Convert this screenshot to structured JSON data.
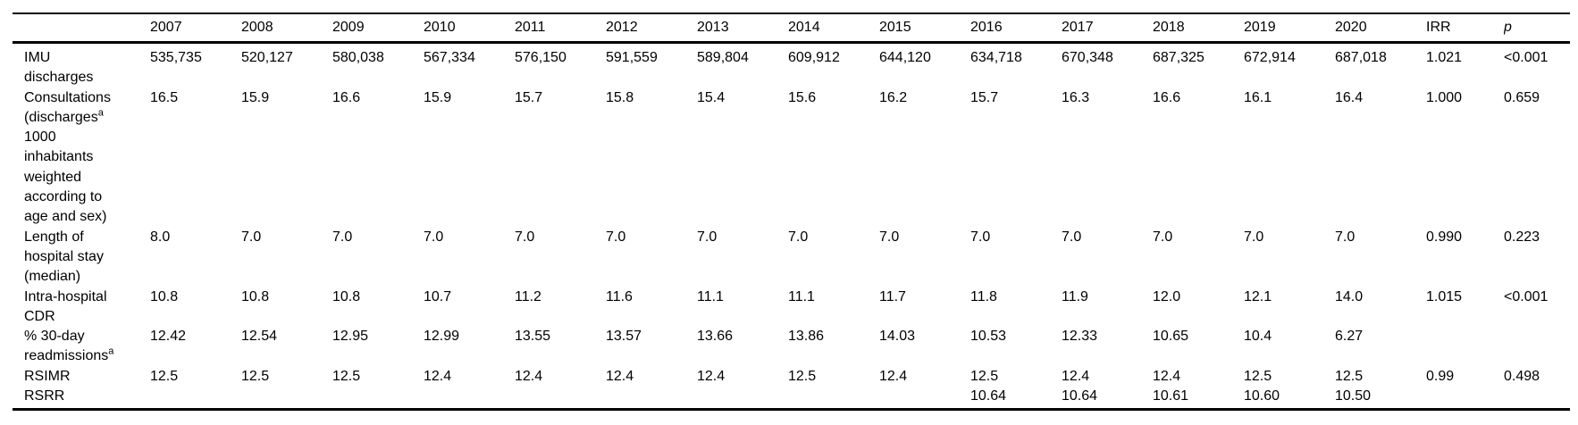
{
  "page": {
    "background_color": "#ffffff",
    "text_color": "#000000"
  },
  "table": {
    "columns": [
      "",
      "2007",
      "2008",
      "2009",
      "2010",
      "2011",
      "2012",
      "2013",
      "2014",
      "2015",
      "2016",
      "2017",
      "2018",
      "2019",
      "2020",
      "IRR",
      "p"
    ],
    "italic_header": "p",
    "rows": [
      {
        "label_lines": [
          "IMU",
          "discharges"
        ],
        "values": [
          "535,735",
          "520,127",
          "580,038",
          "567,334",
          "576,150",
          "591,559",
          "589,804",
          "609,912",
          "644,120",
          "634,718",
          "670,348",
          "687,325",
          "672,914",
          "687,018"
        ],
        "irr": "1.021",
        "p": "<0.001"
      },
      {
        "label_lines": [
          "Consultations",
          "(discharges^a",
          "1000",
          "inhabitants",
          "weighted",
          "according to",
          "age and sex)"
        ],
        "values": [
          "16.5",
          "15.9",
          "16.6",
          "15.9",
          "15.7",
          "15.8",
          "15.4",
          "15.6",
          "16.2",
          "15.7",
          "16.3",
          "16.6",
          "16.1",
          "16.4"
        ],
        "irr": "1.000",
        "p": "0.659"
      },
      {
        "label_lines": [
          "Length of",
          "hospital stay",
          "(median)"
        ],
        "values": [
          "8.0",
          "7.0",
          "7.0",
          "7.0",
          "7.0",
          "7.0",
          "7.0",
          "7.0",
          "7.0",
          "7.0",
          "7.0",
          "7.0",
          "7.0",
          "7.0"
        ],
        "irr": "0.990",
        "p": "0.223"
      },
      {
        "label_lines": [
          "Intra-hospital",
          "CDR"
        ],
        "values": [
          "10.8",
          "10.8",
          "10.8",
          "10.7",
          "11.2",
          "11.6",
          "11.1",
          "11.1",
          "11.7",
          "11.8",
          "11.9",
          "12.0",
          "12.1",
          "14.0"
        ],
        "irr": "1.015",
        "p": "<0.001"
      },
      {
        "label_lines": [
          "% 30-day",
          "readmissions^a"
        ],
        "values": [
          "12.42",
          "12.54",
          "12.95",
          "12.99",
          "13.55",
          "13.57",
          "13.66",
          "13.86",
          "14.03",
          "10.53",
          "12.33",
          "10.65",
          "10.4",
          "6.27"
        ],
        "irr": "",
        "p": ""
      },
      {
        "label_lines": [
          "RSIMR"
        ],
        "values": [
          "12.5",
          "12.5",
          "12.5",
          "12.4",
          "12.4",
          "12.4",
          "12.4",
          "12.5",
          "12.4",
          "12.5",
          "12.4",
          "12.4",
          "12.5",
          "12.5"
        ],
        "irr": "0.99",
        "p": "0.498"
      },
      {
        "label_lines": [
          "RSRR"
        ],
        "values": [
          "",
          "",
          "",
          "",
          "",
          "",
          "",
          "",
          "",
          "10.64",
          "10.64",
          "10.61",
          "10.60",
          "10.50"
        ],
        "irr": "",
        "p": ""
      }
    ]
  }
}
